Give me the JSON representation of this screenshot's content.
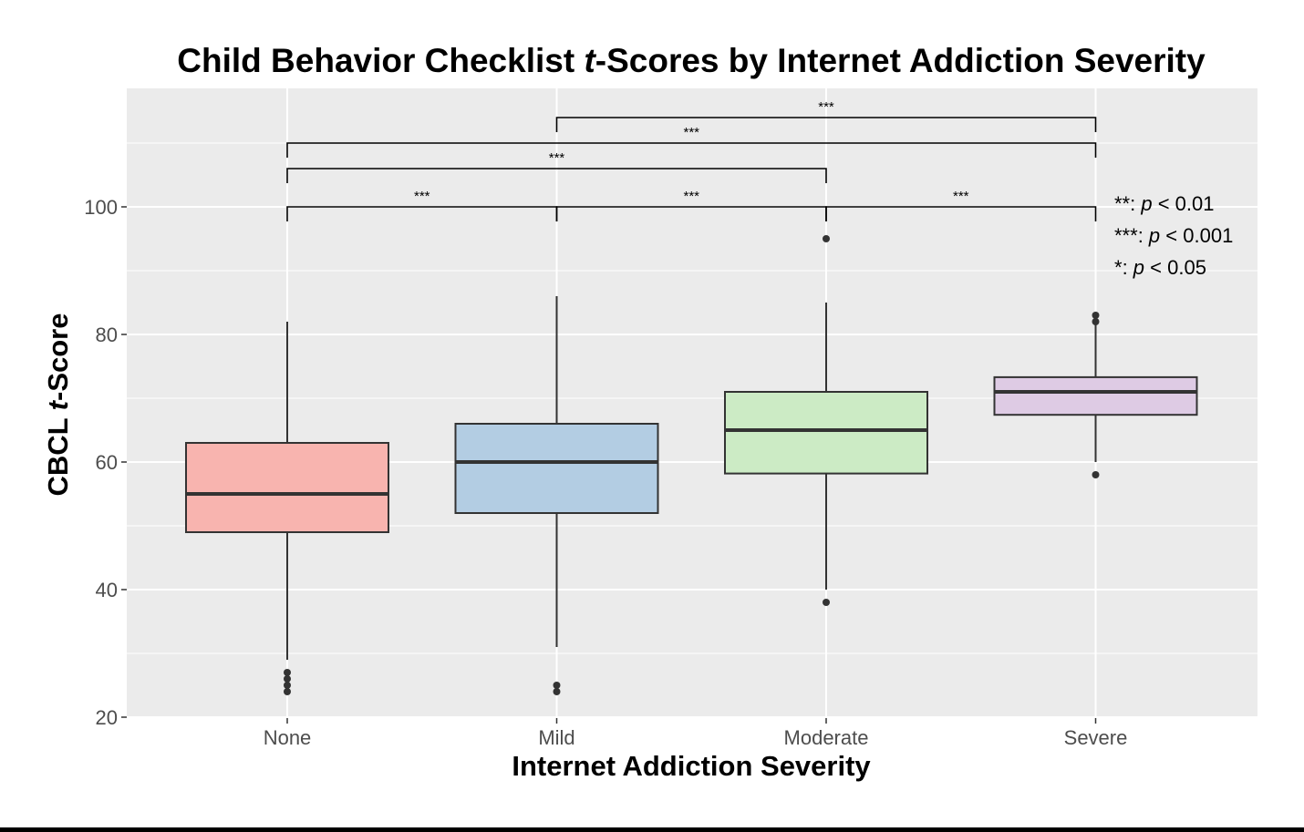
{
  "chart_data": {
    "type": "box",
    "title_parts": [
      "Child Behavior Checklist ",
      "t",
      "-Scores by Internet Addiction Severity"
    ],
    "xlabel": "Internet Addiction Severity",
    "ylabel_parts": [
      "CBCL ",
      "t",
      "-Score"
    ],
    "ylim": [
      18,
      118
    ],
    "yticks": [
      20,
      40,
      60,
      80,
      100
    ],
    "grid": true,
    "categories": [
      "None",
      "Mild",
      "Moderate",
      "Severe"
    ],
    "colors": [
      "#f8b4af",
      "#b3cde3",
      "#ccebc5",
      "#decbe4"
    ],
    "boxes": [
      {
        "category": "None",
        "whisker_low": 29,
        "q1": 49,
        "median": 55,
        "q3": 63,
        "whisker_high": 82,
        "outliers": [
          24,
          25,
          26,
          27
        ]
      },
      {
        "category": "Mild",
        "whisker_low": 31,
        "q1": 52,
        "median": 60,
        "q3": 66,
        "whisker_high": 86,
        "outliers": [
          24,
          25
        ]
      },
      {
        "category": "Moderate",
        "whisker_low": 40,
        "q1": 58.2,
        "median": 65,
        "q3": 71,
        "whisker_high": 85,
        "outliers": [
          38,
          95
        ]
      },
      {
        "category": "Severe",
        "whisker_low": 60,
        "q1": 67.4,
        "median": 71,
        "q3": 73.3,
        "whisker_high": 82,
        "outliers": [
          58,
          82,
          83
        ]
      }
    ],
    "comparisons": [
      {
        "from": "None",
        "to": "Mild",
        "label": "***",
        "y": 100
      },
      {
        "from": "Mild",
        "to": "Moderate",
        "label": "***",
        "y": 100
      },
      {
        "from": "Moderate",
        "to": "Severe",
        "label": "***",
        "y": 100
      },
      {
        "from": "None",
        "to": "Moderate",
        "label": "***",
        "y": 106
      },
      {
        "from": "None",
        "to": "Severe",
        "label": "***",
        "y": 110
      },
      {
        "from": "Mild",
        "to": "Severe",
        "label": "***",
        "y": 114
      }
    ],
    "legend": [
      {
        "stars": "**",
        "p_label": "p",
        "rest": " < 0.01"
      },
      {
        "stars": "***",
        "p_label": "p",
        "rest": " < 0.001"
      },
      {
        "stars": "*",
        "p_label": "p",
        "rest": " < 0.05"
      }
    ],
    "legend_placement": "right"
  }
}
